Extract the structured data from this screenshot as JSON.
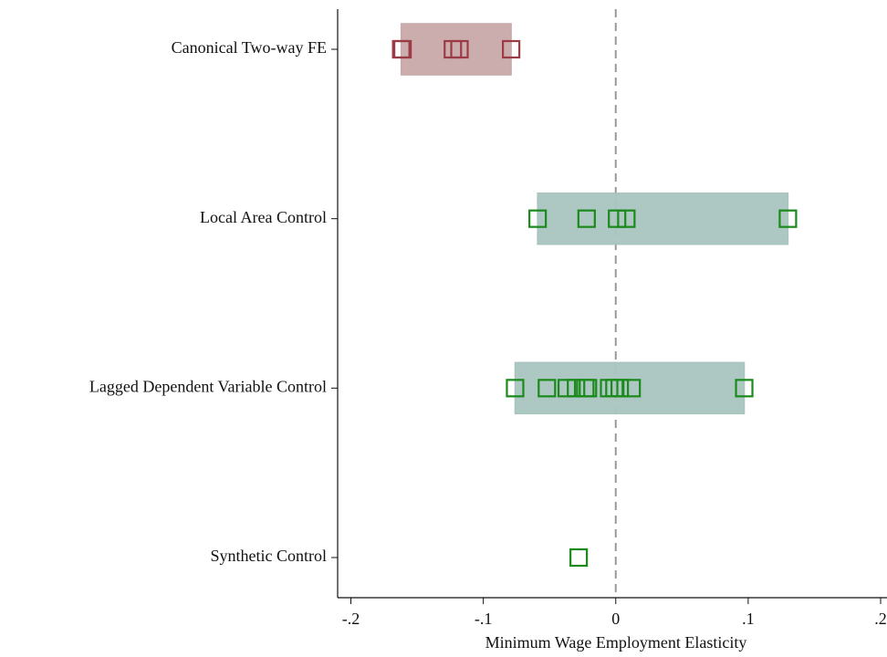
{
  "chart_data": {
    "type": "strip",
    "x_label": "Minimum Wage Employment Elasticity",
    "xlim": [
      -0.21,
      0.2
    ],
    "xticks": [
      {
        "value": -0.2,
        "label": "-.2"
      },
      {
        "value": -0.1,
        "label": "-.1"
      },
      0,
      {
        "value": 0.1,
        "label": ".1"
      },
      {
        "value": 0.2,
        "label": ".2"
      }
    ],
    "xline": 0,
    "series": [
      {
        "name": "Canonical Two-way FE",
        "color": "#9b3b45",
        "box_color": "#c9a9a9",
        "values": [
          -0.162,
          -0.161,
          -0.123,
          -0.118,
          -0.079
        ]
      },
      {
        "name": "Local Area Control",
        "color": "#1a8a1a",
        "box_color": "#a9c4bf",
        "values": [
          -0.059,
          -0.022,
          0.001,
          0.008,
          0.13
        ]
      },
      {
        "name": "Lagged Dependent Variable Control",
        "color": "#1a8a1a",
        "box_color": "#a9c4bf",
        "values": [
          -0.076,
          -0.052,
          -0.037,
          -0.03,
          -0.023,
          -0.021,
          -0.005,
          -0.001,
          0.003,
          0.012,
          0.097
        ]
      },
      {
        "name": "Synthetic Control",
        "color": "#1a8a1a",
        "box_color": "#a9c4bf",
        "values": [
          -0.028
        ]
      }
    ]
  }
}
